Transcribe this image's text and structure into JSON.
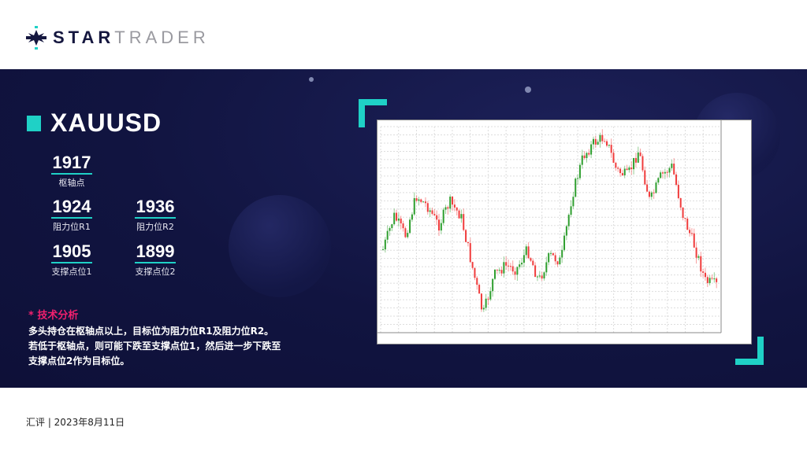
{
  "logo": {
    "bold": "STAR",
    "light": "TRADER",
    "colors": {
      "dark": "#15173f",
      "accent": "#1fd1c6"
    }
  },
  "symbol": "XAUUSD",
  "levels": {
    "pivot": {
      "value": "1917",
      "label": "枢轴点"
    },
    "r1": {
      "value": "1924",
      "label": "阻力位R1"
    },
    "r2": {
      "value": "1936",
      "label": "阻力位R2"
    },
    "s1": {
      "value": "1905",
      "label": "支撑点位1"
    },
    "s2": {
      "value": "1899",
      "label": "支撑点位2"
    }
  },
  "analysis": {
    "heading": "* 技术分析",
    "lines": [
      "多头持仓在枢轴点以上，目标位为阻力位R1及阻力位R2。",
      "若低于枢轴点，则可能下跌至支撑点位1，然后进一步下跌至",
      "支撑点位2作为目标位。"
    ]
  },
  "chart_image": {
    "up_color": "#2e9e2e",
    "down_color": "#f03c3c"
  },
  "footer": "汇评 | 2023年8月11日"
}
